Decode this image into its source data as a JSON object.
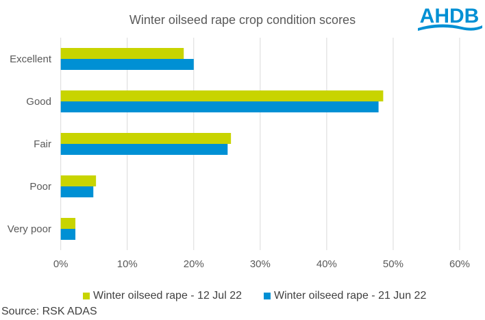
{
  "logo_text": "AHDB",
  "source": "Source: RSK ADAS",
  "chart_data": {
    "type": "bar",
    "orientation": "horizontal",
    "title": "Winter oilseed rape crop condition scores",
    "categories": [
      "Excellent",
      "Good",
      "Fair",
      "Poor",
      "Very poor"
    ],
    "series": [
      {
        "name": "Winter oilseed rape - 12 Jul 22",
        "color": "#C8D400",
        "values": [
          18.5,
          48.5,
          25.6,
          5.3,
          2.2
        ]
      },
      {
        "name": "Winter oilseed rape - 21 Jun 22",
        "color": "#0090D4",
        "values": [
          20.0,
          47.8,
          25.1,
          4.9,
          2.2
        ]
      }
    ],
    "xlim": [
      0,
      60
    ],
    "xticks": [
      "0%",
      "10%",
      "20%",
      "30%",
      "40%",
      "50%",
      "60%"
    ],
    "grid": true,
    "legend_position": "bottom"
  }
}
